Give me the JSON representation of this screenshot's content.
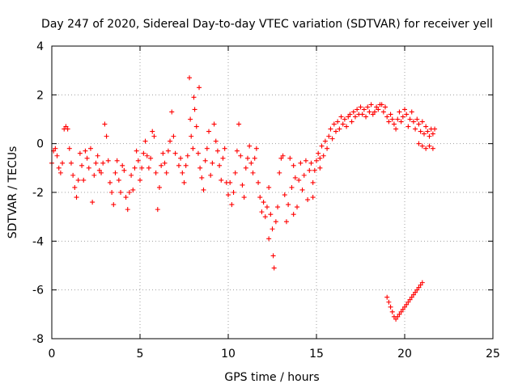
{
  "chart_data": {
    "type": "scatter",
    "title": "Day 247 of 2020, Sidereal Day-to-day VTEC variation (SDTVAR) for receiver yell",
    "xlabel": "GPS time / hours",
    "ylabel": "SDTVAR / TECUs",
    "xlim": [
      0,
      25
    ],
    "ylim": [
      -8,
      4
    ],
    "xticks": [
      "0",
      "5",
      "10",
      "15",
      "20",
      "25"
    ],
    "yticks": [
      "-8",
      "-6",
      "-4",
      "-2",
      "0",
      "2",
      "4"
    ],
    "grid": true,
    "marker": "plus",
    "marker_color": "#ff0000",
    "series": [
      {
        "name": "SDTVAR",
        "points": [
          [
            0.0,
            -0.8
          ],
          [
            0.1,
            -0.3
          ],
          [
            0.2,
            -0.2
          ],
          [
            0.3,
            -0.5
          ],
          [
            0.4,
            -1.0
          ],
          [
            0.5,
            -1.2
          ],
          [
            0.6,
            -0.8
          ],
          [
            0.7,
            0.6
          ],
          [
            0.8,
            0.7
          ],
          [
            0.9,
            0.6
          ],
          [
            1.0,
            -0.2
          ],
          [
            1.1,
            -0.8
          ],
          [
            1.2,
            -1.3
          ],
          [
            1.3,
            -1.8
          ],
          [
            1.4,
            -2.2
          ],
          [
            1.5,
            -1.5
          ],
          [
            1.6,
            -0.4
          ],
          [
            1.7,
            -0.9
          ],
          [
            1.8,
            -1.5
          ],
          [
            1.9,
            -0.3
          ],
          [
            2.0,
            -0.6
          ],
          [
            2.1,
            -1.0
          ],
          [
            2.2,
            -0.2
          ],
          [
            2.3,
            -2.4
          ],
          [
            2.4,
            -1.3
          ],
          [
            2.5,
            -0.8
          ],
          [
            2.6,
            -0.5
          ],
          [
            2.7,
            -1.1
          ],
          [
            2.8,
            -1.2
          ],
          [
            2.9,
            -0.8
          ],
          [
            3.0,
            0.8
          ],
          [
            3.1,
            0.3
          ],
          [
            3.2,
            -0.7
          ],
          [
            3.3,
            -1.6
          ],
          [
            3.4,
            -2.0
          ],
          [
            3.5,
            -2.5
          ],
          [
            3.6,
            -1.2
          ],
          [
            3.7,
            -0.7
          ],
          [
            3.8,
            -1.5
          ],
          [
            3.9,
            -2.0
          ],
          [
            4.0,
            -0.9
          ],
          [
            4.1,
            -1.1
          ],
          [
            4.2,
            -2.2
          ],
          [
            4.3,
            -2.7
          ],
          [
            4.4,
            -2.0
          ],
          [
            4.5,
            -1.3
          ],
          [
            4.6,
            -1.9
          ],
          [
            4.7,
            -1.0
          ],
          [
            4.8,
            -0.3
          ],
          [
            4.9,
            -0.7
          ],
          [
            5.0,
            -1.5
          ],
          [
            5.1,
            -1.0
          ],
          [
            5.2,
            -0.4
          ],
          [
            5.3,
            0.1
          ],
          [
            5.4,
            -0.5
          ],
          [
            5.5,
            -1.0
          ],
          [
            5.6,
            -0.6
          ],
          [
            5.7,
            0.5
          ],
          [
            5.8,
            0.3
          ],
          [
            5.9,
            -1.2
          ],
          [
            6.0,
            -2.7
          ],
          [
            6.1,
            -1.8
          ],
          [
            6.2,
            -0.9
          ],
          [
            6.3,
            -0.4
          ],
          [
            6.4,
            -0.8
          ],
          [
            6.5,
            -1.2
          ],
          [
            6.6,
            -0.3
          ],
          [
            6.7,
            0.1
          ],
          [
            6.8,
            1.3
          ],
          [
            6.9,
            0.3
          ],
          [
            7.0,
            -0.4
          ],
          [
            7.2,
            -0.9
          ],
          [
            7.3,
            -0.6
          ],
          [
            7.4,
            -1.2
          ],
          [
            7.5,
            -1.6
          ],
          [
            7.6,
            -0.9
          ],
          [
            7.7,
            -0.5
          ],
          [
            7.8,
            2.7
          ],
          [
            7.85,
            1.0
          ],
          [
            7.9,
            0.3
          ],
          [
            8.0,
            -0.2
          ],
          [
            8.05,
            1.9
          ],
          [
            8.1,
            1.4
          ],
          [
            8.2,
            0.7
          ],
          [
            8.3,
            -0.4
          ],
          [
            8.35,
            2.3
          ],
          [
            8.4,
            -1.0
          ],
          [
            8.5,
            -1.4
          ],
          [
            8.6,
            -1.9
          ],
          [
            8.7,
            -0.7
          ],
          [
            8.8,
            -0.2
          ],
          [
            8.9,
            0.5
          ],
          [
            9.0,
            -1.3
          ],
          [
            9.1,
            -0.8
          ],
          [
            9.2,
            0.8
          ],
          [
            9.3,
            0.1
          ],
          [
            9.4,
            -0.3
          ],
          [
            9.5,
            -0.9
          ],
          [
            9.6,
            -1.5
          ],
          [
            9.7,
            -0.6
          ],
          [
            9.8,
            -0.2
          ],
          [
            9.9,
            -1.6
          ],
          [
            10.0,
            -2.1
          ],
          [
            10.1,
            -1.6
          ],
          [
            10.2,
            -2.5
          ],
          [
            10.3,
            -2.0
          ],
          [
            10.4,
            -1.2
          ],
          [
            10.5,
            -0.3
          ],
          [
            10.6,
            0.8
          ],
          [
            10.7,
            -0.5
          ],
          [
            10.8,
            -1.7
          ],
          [
            10.9,
            -2.2
          ],
          [
            11.0,
            -1.0
          ],
          [
            11.1,
            -0.6
          ],
          [
            11.2,
            -0.1
          ],
          [
            11.3,
            -0.8
          ],
          [
            11.4,
            -1.2
          ],
          [
            11.5,
            -0.6
          ],
          [
            11.6,
            -0.2
          ],
          [
            11.7,
            -1.6
          ],
          [
            11.8,
            -2.2
          ],
          [
            11.9,
            -2.8
          ],
          [
            12.0,
            -2.4
          ],
          [
            12.1,
            -3.0
          ],
          [
            12.2,
            -2.6
          ],
          [
            12.3,
            -1.8
          ],
          [
            12.4,
            -2.9
          ],
          [
            12.5,
            -3.5
          ],
          [
            12.55,
            -4.6
          ],
          [
            12.6,
            -5.1
          ],
          [
            12.7,
            -3.2
          ],
          [
            12.8,
            -2.6
          ],
          [
            12.9,
            -1.2
          ],
          [
            13.0,
            -0.6
          ],
          [
            13.1,
            -0.5
          ],
          [
            13.2,
            -2.1
          ],
          [
            13.3,
            -3.2
          ],
          [
            13.4,
            -2.5
          ],
          [
            13.5,
            -0.6
          ],
          [
            13.6,
            -1.8
          ],
          [
            13.7,
            -0.9
          ],
          [
            13.8,
            -1.4
          ],
          [
            13.9,
            -2.6
          ],
          [
            14.0,
            -1.5
          ],
          [
            14.1,
            -0.8
          ],
          [
            14.2,
            -1.9
          ],
          [
            14.3,
            -1.3
          ],
          [
            14.4,
            -0.7
          ],
          [
            14.5,
            -2.3
          ],
          [
            14.6,
            -1.1
          ],
          [
            14.7,
            -0.8
          ],
          [
            14.8,
            -1.6
          ],
          [
            14.9,
            -1.1
          ],
          [
            15.0,
            -0.7
          ],
          [
            15.1,
            -0.4
          ],
          [
            15.2,
            -0.6
          ],
          [
            15.3,
            -0.1
          ],
          [
            15.4,
            -0.5
          ],
          [
            15.5,
            0.1
          ],
          [
            15.6,
            -0.2
          ],
          [
            15.7,
            0.3
          ],
          [
            15.8,
            0.6
          ],
          [
            15.9,
            0.2
          ],
          [
            16.0,
            0.8
          ],
          [
            16.1,
            0.5
          ],
          [
            16.2,
            0.9
          ],
          [
            16.3,
            0.6
          ],
          [
            16.4,
            1.1
          ],
          [
            16.5,
            0.8
          ],
          [
            16.6,
            1.0
          ],
          [
            16.7,
            0.7
          ],
          [
            16.8,
            1.1
          ],
          [
            16.9,
            1.2
          ],
          [
            17.0,
            0.9
          ],
          [
            17.1,
            1.3
          ],
          [
            17.2,
            1.1
          ],
          [
            17.3,
            1.4
          ],
          [
            17.4,
            1.2
          ],
          [
            17.5,
            1.5
          ],
          [
            17.6,
            1.2
          ],
          [
            17.7,
            1.4
          ],
          [
            17.8,
            1.1
          ],
          [
            17.9,
            1.5
          ],
          [
            18.0,
            1.3
          ],
          [
            18.1,
            1.6
          ],
          [
            18.2,
            1.2
          ],
          [
            18.3,
            1.3
          ],
          [
            18.4,
            1.5
          ],
          [
            18.5,
            1.4
          ],
          [
            18.6,
            1.6
          ],
          [
            18.7,
            1.6
          ],
          [
            18.8,
            1.3
          ],
          [
            18.9,
            1.5
          ],
          [
            19.0,
            1.1
          ],
          [
            19.1,
            0.9
          ],
          [
            19.2,
            1.2
          ],
          [
            19.3,
            1.0
          ],
          [
            19.4,
            0.8
          ],
          [
            19.5,
            0.6
          ],
          [
            19.6,
            1.0
          ],
          [
            19.7,
            1.3
          ],
          [
            19.8,
            0.9
          ],
          [
            19.9,
            1.1
          ],
          [
            20.0,
            1.4
          ],
          [
            20.1,
            1.2
          ],
          [
            20.2,
            0.7
          ],
          [
            20.3,
            1.0
          ],
          [
            20.4,
            1.3
          ],
          [
            20.5,
            0.9
          ],
          [
            20.6,
            0.6
          ],
          [
            20.7,
            1.0
          ],
          [
            20.8,
            0.8
          ],
          [
            20.9,
            0.5
          ],
          [
            21.0,
            0.9
          ],
          [
            21.1,
            0.4
          ],
          [
            21.2,
            0.7
          ],
          [
            21.3,
            0.5
          ],
          [
            21.4,
            0.3
          ],
          [
            21.5,
            0.6
          ],
          [
            21.6,
            0.4
          ],
          [
            21.7,
            0.6
          ],
          [
            15.2,
            -1.0
          ],
          [
            14.8,
            -2.2
          ],
          [
            13.7,
            -2.9
          ],
          [
            12.3,
            -3.9
          ],
          [
            20.8,
            0.0
          ],
          [
            21.0,
            -0.1
          ],
          [
            21.2,
            -0.2
          ],
          [
            21.4,
            -0.1
          ],
          [
            21.6,
            -0.2
          ],
          [
            19.0,
            -6.3
          ],
          [
            19.1,
            -6.5
          ],
          [
            19.2,
            -6.7
          ],
          [
            19.3,
            -6.9
          ],
          [
            19.4,
            -7.1
          ],
          [
            19.5,
            -7.2
          ],
          [
            19.6,
            -7.1
          ],
          [
            19.7,
            -7.0
          ],
          [
            19.8,
            -6.9
          ],
          [
            19.9,
            -6.8
          ],
          [
            20.0,
            -6.7
          ],
          [
            20.1,
            -6.6
          ],
          [
            20.2,
            -6.5
          ],
          [
            20.3,
            -6.4
          ],
          [
            20.4,
            -6.3
          ],
          [
            20.5,
            -6.2
          ],
          [
            20.6,
            -6.1
          ],
          [
            20.7,
            -6.0
          ],
          [
            20.8,
            -5.9
          ],
          [
            20.9,
            -5.8
          ],
          [
            21.0,
            -5.7
          ]
        ]
      }
    ]
  }
}
